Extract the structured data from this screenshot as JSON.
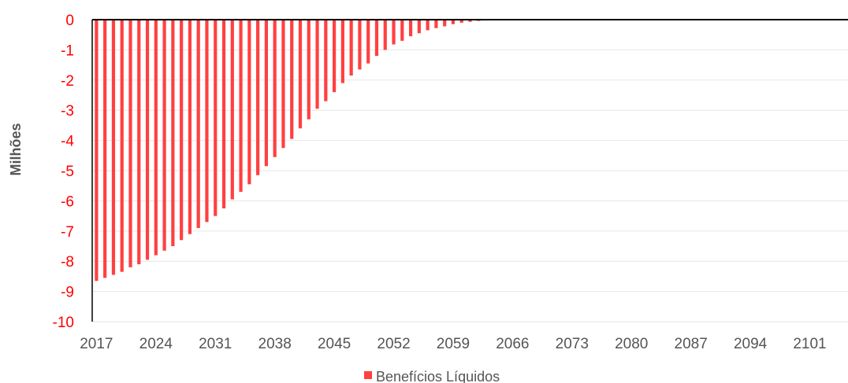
{
  "chart_data": {
    "type": "bar",
    "title": "",
    "xlabel": "",
    "ylabel": "Milhões",
    "ylim": [
      -10,
      0
    ],
    "yticks": [
      0,
      -1,
      -2,
      -3,
      -4,
      -5,
      -6,
      -7,
      -8,
      -9,
      -10
    ],
    "xticks": [
      2017,
      2024,
      2031,
      2038,
      2045,
      2052,
      2059,
      2066,
      2073,
      2080,
      2087,
      2094,
      2101
    ],
    "x_first_year": 2017,
    "x_last_year": 2105,
    "grid": true,
    "legend_position": "bottom",
    "series": [
      {
        "name": "Benefícios Líquidos",
        "color": "#ff4040",
        "x": [
          2017,
          2018,
          2019,
          2020,
          2021,
          2022,
          2023,
          2024,
          2025,
          2026,
          2027,
          2028,
          2029,
          2030,
          2031,
          2032,
          2033,
          2034,
          2035,
          2036,
          2037,
          2038,
          2039,
          2040,
          2041,
          2042,
          2043,
          2044,
          2045,
          2046,
          2047,
          2048,
          2049,
          2050,
          2051,
          2052,
          2053,
          2054,
          2055,
          2056,
          2057,
          2058,
          2059,
          2060,
          2061,
          2062,
          2063,
          2064,
          2065
        ],
        "values": [
          -8.65,
          -8.55,
          -8.45,
          -8.35,
          -8.2,
          -8.1,
          -7.95,
          -7.8,
          -7.65,
          -7.5,
          -7.3,
          -7.1,
          -6.9,
          -6.7,
          -6.5,
          -6.25,
          -5.95,
          -5.7,
          -5.45,
          -5.15,
          -4.85,
          -4.55,
          -4.25,
          -3.95,
          -3.6,
          -3.3,
          -2.95,
          -2.7,
          -2.4,
          -2.1,
          -1.85,
          -1.65,
          -1.45,
          -1.2,
          -1.0,
          -0.82,
          -0.7,
          -0.55,
          -0.45,
          -0.35,
          -0.28,
          -0.22,
          -0.15,
          -0.1,
          -0.07,
          -0.04,
          -0.02,
          -0.01,
          0
        ]
      }
    ]
  }
}
